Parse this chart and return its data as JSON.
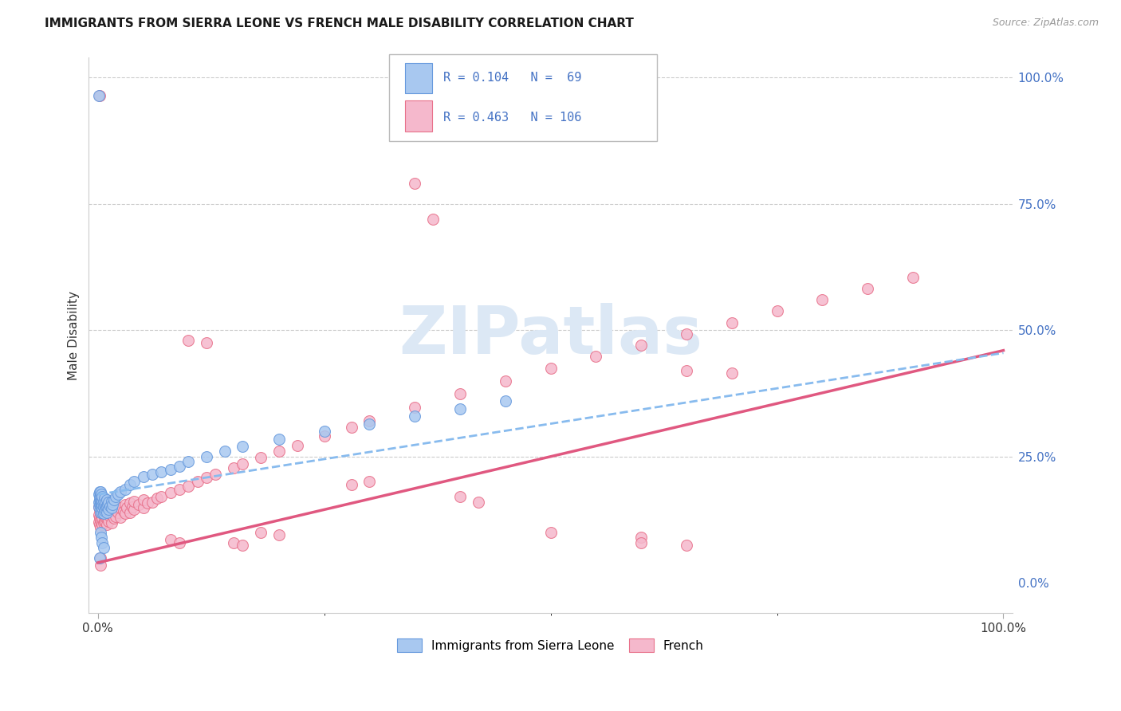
{
  "title": "IMMIGRANTS FROM SIERRA LEONE VS FRENCH MALE DISABILITY CORRELATION CHART",
  "source": "Source: ZipAtlas.com",
  "ylabel": "Male Disability",
  "legend_1_label": "Immigrants from Sierra Leone",
  "legend_2_label": "French",
  "R1": 0.104,
  "N1": 69,
  "R2": 0.463,
  "N2": 106,
  "color_blue": "#A8C8F0",
  "color_blue_edge": "#6699DD",
  "color_pink": "#F5B8CC",
  "color_pink_edge": "#E8708A",
  "color_blue_line": "#88BBEE",
  "color_pink_line": "#E05880",
  "color_text_blue": "#4472C4",
  "color_text_dark": "#333333",
  "background_color": "#FFFFFF",
  "grid_color": "#CCCCCC",
  "watermark_color": "#DCE8F5",
  "pink_slope": 0.42,
  "pink_intercept": 0.04,
  "blue_slope": 0.28,
  "blue_intercept": 0.175,
  "xlim_min": -0.01,
  "xlim_max": 1.01,
  "ylim_min": -0.06,
  "ylim_max": 1.04,
  "blue_x": [
    0.001,
    0.001,
    0.001,
    0.002,
    0.002,
    0.002,
    0.002,
    0.003,
    0.003,
    0.003,
    0.003,
    0.003,
    0.003,
    0.004,
    0.004,
    0.004,
    0.004,
    0.005,
    0.005,
    0.005,
    0.005,
    0.005,
    0.006,
    0.006,
    0.006,
    0.007,
    0.007,
    0.007,
    0.008,
    0.008,
    0.009,
    0.01,
    0.01,
    0.01,
    0.011,
    0.012,
    0.012,
    0.013,
    0.015,
    0.015,
    0.016,
    0.018,
    0.02,
    0.022,
    0.025,
    0.03,
    0.035,
    0.04,
    0.05,
    0.06,
    0.07,
    0.08,
    0.09,
    0.1,
    0.12,
    0.14,
    0.16,
    0.2,
    0.25,
    0.3,
    0.35,
    0.4,
    0.45,
    0.003,
    0.004,
    0.005,
    0.006,
    0.002,
    0.001
  ],
  "blue_y": [
    0.15,
    0.16,
    0.175,
    0.155,
    0.165,
    0.17,
    0.18,
    0.14,
    0.15,
    0.158,
    0.165,
    0.172,
    0.18,
    0.145,
    0.155,
    0.162,
    0.175,
    0.14,
    0.148,
    0.155,
    0.163,
    0.17,
    0.138,
    0.15,
    0.162,
    0.142,
    0.155,
    0.168,
    0.145,
    0.16,
    0.15,
    0.14,
    0.152,
    0.165,
    0.155,
    0.145,
    0.16,
    0.152,
    0.148,
    0.162,
    0.155,
    0.165,
    0.17,
    0.175,
    0.18,
    0.185,
    0.195,
    0.2,
    0.21,
    0.215,
    0.22,
    0.225,
    0.23,
    0.24,
    0.25,
    0.26,
    0.27,
    0.285,
    0.3,
    0.315,
    0.33,
    0.345,
    0.36,
    0.1,
    0.09,
    0.08,
    0.07,
    0.05,
    0.965
  ],
  "pink_x": [
    0.001,
    0.001,
    0.001,
    0.002,
    0.002,
    0.002,
    0.003,
    0.003,
    0.003,
    0.004,
    0.004,
    0.004,
    0.005,
    0.005,
    0.005,
    0.005,
    0.006,
    0.006,
    0.007,
    0.007,
    0.008,
    0.008,
    0.009,
    0.01,
    0.01,
    0.01,
    0.011,
    0.012,
    0.012,
    0.013,
    0.015,
    0.015,
    0.015,
    0.016,
    0.018,
    0.018,
    0.02,
    0.02,
    0.022,
    0.025,
    0.025,
    0.028,
    0.03,
    0.03,
    0.032,
    0.035,
    0.035,
    0.038,
    0.04,
    0.04,
    0.045,
    0.05,
    0.05,
    0.055,
    0.06,
    0.065,
    0.07,
    0.08,
    0.09,
    0.1,
    0.11,
    0.12,
    0.13,
    0.15,
    0.16,
    0.18,
    0.2,
    0.22,
    0.25,
    0.28,
    0.3,
    0.35,
    0.4,
    0.45,
    0.5,
    0.55,
    0.6,
    0.65,
    0.7,
    0.75,
    0.8,
    0.85,
    0.9,
    0.002,
    0.35,
    0.37,
    0.1,
    0.12,
    0.5,
    0.6,
    0.08,
    0.09,
    0.65,
    0.7,
    0.28,
    0.3,
    0.15,
    0.16,
    0.4,
    0.42,
    0.18,
    0.2,
    0.6,
    0.65,
    0.003,
    0.003
  ],
  "pink_y": [
    0.12,
    0.135,
    0.15,
    0.115,
    0.13,
    0.145,
    0.11,
    0.125,
    0.14,
    0.12,
    0.133,
    0.148,
    0.115,
    0.128,
    0.14,
    0.155,
    0.118,
    0.135,
    0.122,
    0.138,
    0.12,
    0.138,
    0.128,
    0.115,
    0.13,
    0.148,
    0.135,
    0.122,
    0.14,
    0.132,
    0.118,
    0.135,
    0.152,
    0.14,
    0.128,
    0.145,
    0.132,
    0.148,
    0.14,
    0.13,
    0.148,
    0.142,
    0.138,
    0.155,
    0.148,
    0.14,
    0.158,
    0.15,
    0.145,
    0.162,
    0.155,
    0.148,
    0.165,
    0.158,
    0.16,
    0.168,
    0.17,
    0.178,
    0.185,
    0.192,
    0.2,
    0.208,
    0.215,
    0.228,
    0.235,
    0.248,
    0.26,
    0.272,
    0.29,
    0.308,
    0.32,
    0.348,
    0.375,
    0.4,
    0.425,
    0.448,
    0.47,
    0.492,
    0.515,
    0.538,
    0.56,
    0.582,
    0.605,
    0.965,
    0.79,
    0.72,
    0.48,
    0.475,
    0.1,
    0.09,
    0.085,
    0.08,
    0.42,
    0.415,
    0.195,
    0.2,
    0.08,
    0.075,
    0.17,
    0.16,
    0.1,
    0.095,
    0.08,
    0.075,
    0.05,
    0.035
  ]
}
